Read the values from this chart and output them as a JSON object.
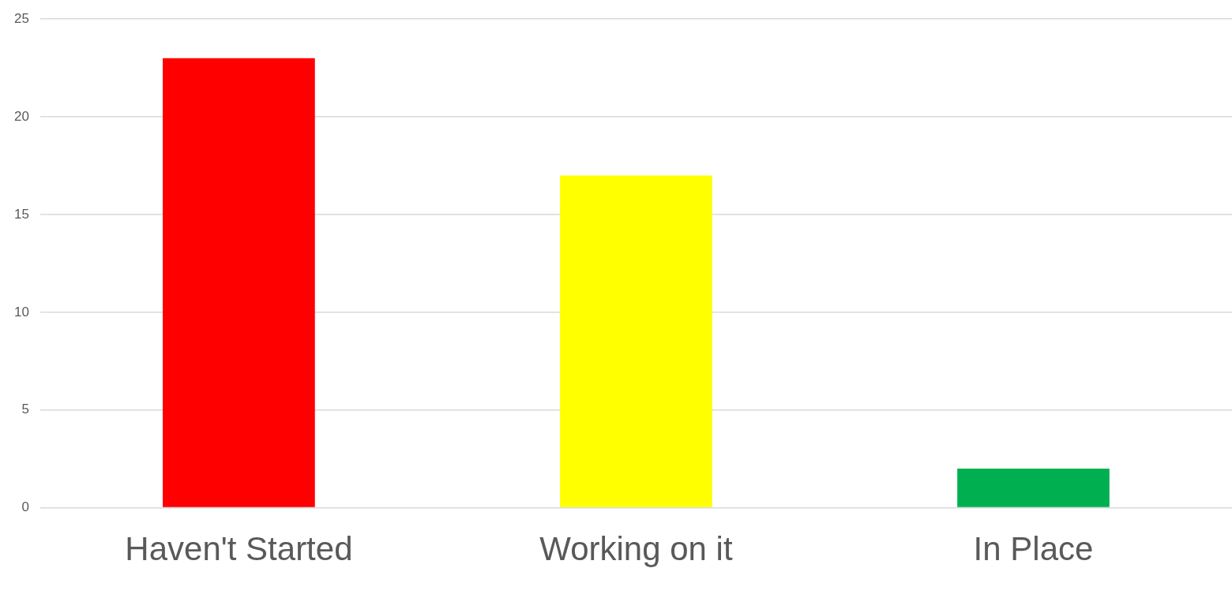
{
  "chart_data": {
    "type": "bar",
    "categories": [
      "Haven't Started",
      "Working on it",
      "In Place"
    ],
    "values": [
      23,
      17,
      2
    ],
    "colors": [
      "#ff0000",
      "#ffff00",
      "#00b050"
    ],
    "ylim": [
      0,
      25
    ],
    "yticks": [
      0,
      5,
      10,
      15,
      20,
      25
    ],
    "grid": "y",
    "legend": false
  }
}
